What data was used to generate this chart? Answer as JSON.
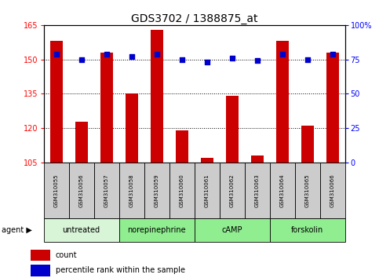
{
  "title": "GDS3702 / 1388875_at",
  "samples": [
    "GSM310055",
    "GSM310056",
    "GSM310057",
    "GSM310058",
    "GSM310059",
    "GSM310060",
    "GSM310061",
    "GSM310062",
    "GSM310063",
    "GSM310064",
    "GSM310065",
    "GSM310066"
  ],
  "count_values": [
    158,
    123,
    153,
    135,
    163,
    119,
    107,
    134,
    108,
    158,
    121,
    153
  ],
  "percentile_values": [
    79,
    75,
    79,
    77,
    79,
    75,
    73,
    76,
    74,
    79,
    75,
    79
  ],
  "ylim_left": [
    105,
    165
  ],
  "ylim_right": [
    0,
    100
  ],
  "yticks_left": [
    105,
    120,
    135,
    150,
    165
  ],
  "yticks_right": [
    0,
    25,
    50,
    75,
    100
  ],
  "groups": [
    {
      "label": "untreated",
      "start": 0,
      "end": 3,
      "color": "#d8f5d8"
    },
    {
      "label": "norepinephrine",
      "start": 3,
      "end": 6,
      "color": "#90ee90"
    },
    {
      "label": "cAMP",
      "start": 6,
      "end": 9,
      "color": "#90ee90"
    },
    {
      "label": "forskolin",
      "start": 9,
      "end": 12,
      "color": "#90ee90"
    }
  ],
  "bar_color": "#cc0000",
  "dot_color": "#0000cc",
  "bar_width": 0.5,
  "grid_color": "#000000",
  "legend_count_label": "count",
  "legend_pct_label": "percentile rank within the sample",
  "title_fontsize": 10,
  "tick_fontsize": 7,
  "sample_fontsize": 5,
  "group_fontsize": 7,
  "legend_fontsize": 7
}
